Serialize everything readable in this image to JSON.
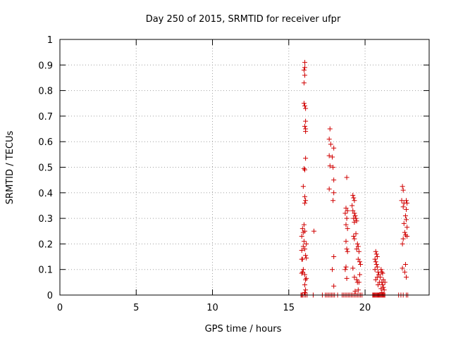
{
  "chart_data": {
    "type": "scatter",
    "title": "Day 250 of 2015, SRMTID for receiver ufpr",
    "xlabel": "GPS time / hours",
    "ylabel": "SRMTID / TECUs",
    "xlim": [
      0,
      24.2
    ],
    "ylim": [
      0,
      1
    ],
    "xticks": [
      "0",
      "5",
      "10",
      "15",
      "20"
    ],
    "xtick_values": [
      0,
      5,
      10,
      15,
      20
    ],
    "yticks": [
      "0",
      "0.1",
      "0.2",
      "0.3",
      "0.4",
      "0.5",
      "0.6",
      "0.7",
      "0.8",
      "0.9",
      "1"
    ],
    "ytick_values": [
      0,
      0.1,
      0.2,
      0.3,
      0.4,
      0.5,
      0.6,
      0.7,
      0.8,
      0.9,
      1
    ],
    "grid": true,
    "marker": "+",
    "color": "#d00000",
    "series": [
      {
        "name": "SRMTID",
        "points": [
          [
            15.8,
            0.0
          ],
          [
            15.85,
            0.0
          ],
          [
            15.9,
            0.0
          ],
          [
            16.0,
            0.0
          ],
          [
            16.1,
            0.0
          ],
          [
            16.2,
            0.0
          ],
          [
            16.6,
            0.0
          ],
          [
            17.2,
            0.0
          ],
          [
            17.4,
            0.0
          ],
          [
            17.5,
            0.0
          ],
          [
            17.6,
            0.0
          ],
          [
            17.7,
            0.0
          ],
          [
            17.8,
            0.0
          ],
          [
            17.9,
            0.0
          ],
          [
            18.0,
            0.0
          ],
          [
            18.2,
            0.0
          ],
          [
            18.5,
            0.0
          ],
          [
            18.6,
            0.0
          ],
          [
            18.7,
            0.0
          ],
          [
            18.8,
            0.0
          ],
          [
            18.9,
            0.0
          ],
          [
            19.0,
            0.0
          ],
          [
            19.1,
            0.0
          ],
          [
            19.2,
            0.0
          ],
          [
            19.3,
            0.0
          ],
          [
            19.4,
            0.0
          ],
          [
            19.5,
            0.0
          ],
          [
            19.6,
            0.0
          ],
          [
            19.7,
            0.0
          ],
          [
            19.8,
            0.0
          ],
          [
            20.5,
            0.0
          ],
          [
            20.55,
            0.0
          ],
          [
            20.6,
            0.0
          ],
          [
            20.65,
            0.0
          ],
          [
            20.7,
            0.0
          ],
          [
            20.75,
            0.0
          ],
          [
            20.8,
            0.0
          ],
          [
            20.85,
            0.0
          ],
          [
            20.9,
            0.0
          ],
          [
            20.95,
            0.0
          ],
          [
            21.0,
            0.0
          ],
          [
            21.05,
            0.0
          ],
          [
            21.1,
            0.0
          ],
          [
            21.15,
            0.0
          ],
          [
            21.2,
            0.0
          ],
          [
            21.25,
            0.0
          ],
          [
            21.3,
            0.0
          ],
          [
            22.2,
            0.0
          ],
          [
            22.35,
            0.0
          ],
          [
            22.5,
            0.0
          ],
          [
            22.7,
            0.0
          ],
          [
            22.8,
            0.0
          ],
          [
            16.05,
            0.91
          ],
          [
            16.05,
            0.89
          ],
          [
            16.0,
            0.88
          ],
          [
            16.05,
            0.86
          ],
          [
            16.0,
            0.83
          ],
          [
            16.0,
            0.75
          ],
          [
            16.05,
            0.74
          ],
          [
            16.1,
            0.73
          ],
          [
            16.1,
            0.68
          ],
          [
            16.05,
            0.66
          ],
          [
            16.1,
            0.65
          ],
          [
            16.1,
            0.64
          ],
          [
            16.1,
            0.535
          ],
          [
            16.0,
            0.495
          ],
          [
            16.05,
            0.49
          ],
          [
            15.95,
            0.425
          ],
          [
            16.05,
            0.385
          ],
          [
            16.1,
            0.37
          ],
          [
            16.05,
            0.36
          ],
          [
            16.0,
            0.275
          ],
          [
            15.9,
            0.26
          ],
          [
            16.05,
            0.25
          ],
          [
            15.95,
            0.245
          ],
          [
            15.85,
            0.23
          ],
          [
            16.0,
            0.21
          ],
          [
            16.15,
            0.2
          ],
          [
            15.95,
            0.19
          ],
          [
            15.85,
            0.175
          ],
          [
            16.05,
            0.18
          ],
          [
            15.9,
            0.14
          ],
          [
            15.85,
            0.14
          ],
          [
            16.1,
            0.155
          ],
          [
            16.15,
            0.145
          ],
          [
            15.95,
            0.1
          ],
          [
            15.9,
            0.09
          ],
          [
            15.85,
            0.085
          ],
          [
            16.05,
            0.08
          ],
          [
            16.15,
            0.065
          ],
          [
            16.1,
            0.06
          ],
          [
            16.05,
            0.04
          ],
          [
            16.1,
            0.02
          ],
          [
            16.05,
            0.01
          ],
          [
            16.65,
            0.25
          ],
          [
            17.7,
            0.65
          ],
          [
            17.65,
            0.61
          ],
          [
            17.75,
            0.59
          ],
          [
            17.95,
            0.575
          ],
          [
            17.65,
            0.545
          ],
          [
            17.85,
            0.54
          ],
          [
            17.7,
            0.505
          ],
          [
            17.9,
            0.5
          ],
          [
            17.95,
            0.45
          ],
          [
            17.65,
            0.415
          ],
          [
            17.95,
            0.4
          ],
          [
            17.9,
            0.37
          ],
          [
            17.95,
            0.15
          ],
          [
            17.85,
            0.1
          ],
          [
            17.95,
            0.035
          ],
          [
            18.8,
            0.46
          ],
          [
            18.75,
            0.34
          ],
          [
            18.85,
            0.33
          ],
          [
            18.7,
            0.32
          ],
          [
            18.8,
            0.3
          ],
          [
            18.75,
            0.275
          ],
          [
            18.85,
            0.26
          ],
          [
            18.75,
            0.21
          ],
          [
            18.8,
            0.18
          ],
          [
            18.85,
            0.17
          ],
          [
            18.75,
            0.11
          ],
          [
            18.7,
            0.1
          ],
          [
            18.8,
            0.065
          ],
          [
            19.2,
            0.39
          ],
          [
            19.25,
            0.38
          ],
          [
            19.3,
            0.37
          ],
          [
            19.15,
            0.35
          ],
          [
            19.2,
            0.33
          ],
          [
            19.3,
            0.32
          ],
          [
            19.35,
            0.31
          ],
          [
            19.25,
            0.3
          ],
          [
            19.4,
            0.3
          ],
          [
            19.45,
            0.29
          ],
          [
            19.3,
            0.285
          ],
          [
            19.4,
            0.24
          ],
          [
            19.25,
            0.23
          ],
          [
            19.3,
            0.22
          ],
          [
            19.5,
            0.2
          ],
          [
            19.55,
            0.19
          ],
          [
            19.45,
            0.18
          ],
          [
            19.6,
            0.17
          ],
          [
            19.55,
            0.14
          ],
          [
            19.65,
            0.13
          ],
          [
            19.7,
            0.12
          ],
          [
            19.2,
            0.105
          ],
          [
            19.3,
            0.07
          ],
          [
            19.45,
            0.06
          ],
          [
            19.5,
            0.05
          ],
          [
            19.6,
            0.05
          ],
          [
            19.65,
            0.08
          ],
          [
            19.55,
            0.02
          ],
          [
            19.35,
            0.015
          ],
          [
            20.7,
            0.17
          ],
          [
            20.75,
            0.16
          ],
          [
            20.8,
            0.15
          ],
          [
            20.65,
            0.14
          ],
          [
            20.7,
            0.13
          ],
          [
            20.75,
            0.12
          ],
          [
            20.8,
            0.11
          ],
          [
            20.65,
            0.1
          ],
          [
            20.85,
            0.09
          ],
          [
            20.9,
            0.08
          ],
          [
            20.8,
            0.07
          ],
          [
            20.7,
            0.06
          ],
          [
            20.95,
            0.05
          ],
          [
            20.85,
            0.04
          ],
          [
            21.05,
            0.1
          ],
          [
            21.1,
            0.09
          ],
          [
            21.15,
            0.085
          ],
          [
            21.0,
            0.07
          ],
          [
            21.2,
            0.06
          ],
          [
            21.1,
            0.05
          ],
          [
            21.15,
            0.04
          ],
          [
            21.2,
            0.03
          ],
          [
            21.05,
            0.025
          ],
          [
            21.25,
            0.02
          ],
          [
            21.1,
            0.01
          ],
          [
            21.3,
            0.05
          ],
          [
            22.45,
            0.425
          ],
          [
            22.5,
            0.41
          ],
          [
            22.4,
            0.37
          ],
          [
            22.55,
            0.36
          ],
          [
            22.7,
            0.37
          ],
          [
            22.75,
            0.36
          ],
          [
            22.5,
            0.345
          ],
          [
            22.7,
            0.335
          ],
          [
            22.65,
            0.31
          ],
          [
            22.7,
            0.295
          ],
          [
            22.55,
            0.28
          ],
          [
            22.75,
            0.265
          ],
          [
            22.6,
            0.245
          ],
          [
            22.65,
            0.235
          ],
          [
            22.75,
            0.23
          ],
          [
            22.5,
            0.22
          ],
          [
            22.45,
            0.2
          ],
          [
            22.65,
            0.12
          ],
          [
            22.45,
            0.105
          ],
          [
            22.6,
            0.09
          ],
          [
            22.7,
            0.07
          ]
        ]
      }
    ]
  }
}
